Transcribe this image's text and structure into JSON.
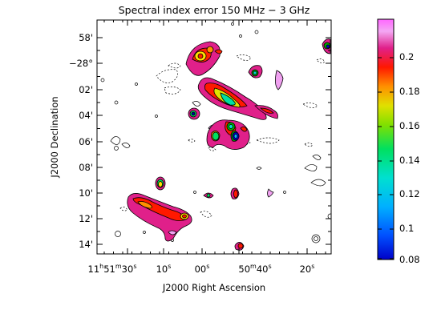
{
  "figure": {
    "title": "Spectral index error 150 MHz − 3 GHz",
    "xlabel": "J2000 Right Ascension",
    "ylabel": "J2000 Declination"
  },
  "axes": {
    "y_ticks": [
      "58'",
      "−28°",
      "02'",
      "04'",
      "06'",
      "08'",
      "10'",
      "12'",
      "14'"
    ],
    "x_ticks": [
      {
        "main": "11",
        "sup1": "h",
        "mid": "51",
        "sup2": "m",
        "tail": "30",
        "sup3": "s"
      },
      {
        "main": "10",
        "sup1": "s"
      },
      {
        "main": "00",
        "sup1": "s"
      },
      {
        "main": "50",
        "sup1": "m",
        "mid": "40",
        "sup2": "s"
      },
      {
        "main": "20",
        "sup1": "s"
      }
    ]
  },
  "colorbar": {
    "min": 0.08,
    "max": 0.22,
    "ticks": [
      "0.2",
      "0.18",
      "0.16",
      "0.14",
      "0.12",
      "0.1",
      "0.08"
    ],
    "colormap": [
      "#0000c8",
      "#00a0ff",
      "#00e0e0",
      "#00e060",
      "#60e000",
      "#e0e000",
      "#ff9000",
      "#ff1800",
      "#e01890",
      "#f0a0f0",
      "#ff66ff"
    ]
  }
}
